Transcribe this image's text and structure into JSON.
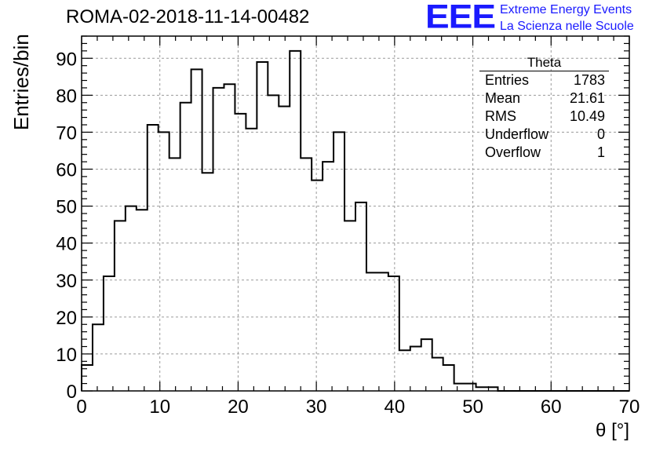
{
  "header": {
    "title": "ROMA-02-2018-11-14-00482",
    "logo": "EEE",
    "logo_line1": "Extreme Energy Events",
    "logo_line2": "La Scienza nelle Scuole"
  },
  "stats": {
    "title": "Theta",
    "rows": [
      {
        "label": "Entries",
        "value": "1783"
      },
      {
        "label": "Mean",
        "value": "21.61"
      },
      {
        "label": "RMS",
        "value": "10.49"
      },
      {
        "label": "Underflow",
        "value": "0"
      },
      {
        "label": "Overflow",
        "value": "1"
      }
    ]
  },
  "chart_data": {
    "type": "bar",
    "style": "step-histogram",
    "title": "ROMA-02-2018-11-14-00482",
    "xlabel": "θ [°]",
    "ylabel": "Entries/bin",
    "xlim": [
      0,
      70
    ],
    "ylim": [
      0,
      96
    ],
    "grid": true,
    "bin_width": 1.4,
    "x_ticks": [
      0,
      10,
      20,
      30,
      40,
      50,
      60,
      70
    ],
    "y_ticks": [
      0,
      10,
      20,
      30,
      40,
      50,
      60,
      70,
      80,
      90
    ],
    "values": [
      7,
      18,
      31,
      46,
      50,
      49,
      72,
      70,
      63,
      78,
      87,
      59,
      82,
      83,
      75,
      71,
      89,
      80,
      77,
      92,
      63,
      57,
      62,
      70,
      46,
      51,
      32,
      32,
      31,
      11,
      12,
      14,
      9,
      7,
      2,
      2,
      1,
      1,
      0,
      0,
      0,
      0,
      0,
      0,
      0,
      0,
      0,
      0,
      0,
      0
    ],
    "line_color": "#000000",
    "grid_color": "#9a9a9a"
  },
  "colors": {
    "logo": "#1a1aff",
    "axis": "#000000"
  }
}
